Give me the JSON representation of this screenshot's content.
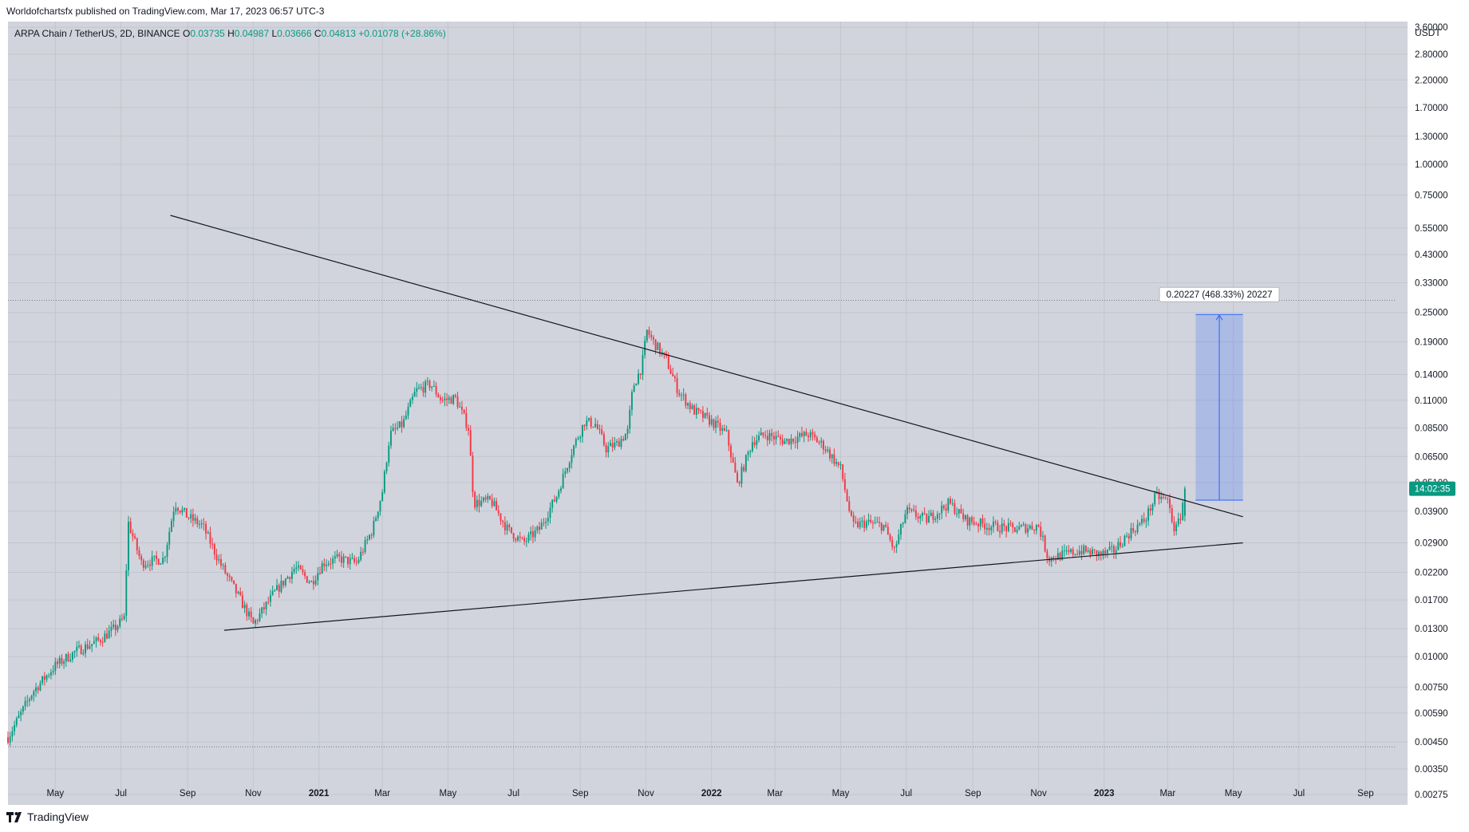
{
  "header": {
    "published": "Worldofchartsfx published on TradingView.com, Mar 17, 2023 06:57 UTC-3"
  },
  "legend": {
    "symbol": "ARPA Chain / TetherUS, 2D, BINANCE",
    "o_key": "O",
    "o_val": "0.03735",
    "h_key": "H",
    "h_val": "0.04987",
    "l_key": "L",
    "l_val": "0.03666",
    "c_key": "C",
    "c_val": "0.04813",
    "change": "+0.01078 (+28.86%)"
  },
  "brand": {
    "label": "TradingView"
  },
  "colors": {
    "up": "#089981",
    "down": "#f23645",
    "background": "#d1d4dc",
    "measure": "#2962ff"
  },
  "chart_data": {
    "type": "candlestick",
    "symbol": "ARPA Chain / TetherUS",
    "interval": "2D",
    "exchange": "BINANCE",
    "y_unit": "USDT",
    "y_scale": "log",
    "ylim": [
      0.0025,
      3.8
    ],
    "x_range": [
      "2020-03-18",
      "2023-10-10"
    ],
    "y_ticks": [
      "3.60000",
      "2.80000",
      "2.20000",
      "1.70000",
      "1.30000",
      "1.00000",
      "0.75000",
      "0.55000",
      "0.43000",
      "0.33000",
      "0.25000",
      "0.19000",
      "0.14000",
      "0.11000",
      "0.08500",
      "0.06500",
      "0.05100",
      "0.03900",
      "0.02900",
      "0.02200",
      "0.01700",
      "0.01300",
      "0.01000",
      "0.00750",
      "0.00590",
      "0.00450",
      "0.00350",
      "0.00275"
    ],
    "x_ticks": [
      {
        "label": "May",
        "date": "2020-05-01",
        "bold": false
      },
      {
        "label": "Jul",
        "date": "2020-07-01",
        "bold": false
      },
      {
        "label": "Sep",
        "date": "2020-09-01",
        "bold": false
      },
      {
        "label": "Nov",
        "date": "2020-11-01",
        "bold": false
      },
      {
        "label": "2021",
        "date": "2021-01-01",
        "bold": true
      },
      {
        "label": "Mar",
        "date": "2021-03-01",
        "bold": false
      },
      {
        "label": "May",
        "date": "2021-05-01",
        "bold": false
      },
      {
        "label": "Jul",
        "date": "2021-07-01",
        "bold": false
      },
      {
        "label": "Sep",
        "date": "2021-09-01",
        "bold": false
      },
      {
        "label": "Nov",
        "date": "2021-11-01",
        "bold": false
      },
      {
        "label": "2022",
        "date": "2022-01-01",
        "bold": true
      },
      {
        "label": "Mar",
        "date": "2022-03-01",
        "bold": false
      },
      {
        "label": "May",
        "date": "2022-05-01",
        "bold": false
      },
      {
        "label": "Jul",
        "date": "2022-07-01",
        "bold": false
      },
      {
        "label": "Sep",
        "date": "2022-09-01",
        "bold": false
      },
      {
        "label": "Nov",
        "date": "2022-11-01",
        "bold": false
      },
      {
        "label": "2023",
        "date": "2023-01-01",
        "bold": true
      },
      {
        "label": "Mar",
        "date": "2023-03-01",
        "bold": false
      },
      {
        "label": "May",
        "date": "2023-05-01",
        "bold": false
      },
      {
        "label": "Jul",
        "date": "2023-07-01",
        "bold": false
      },
      {
        "label": "Sep",
        "date": "2023-09-01",
        "bold": false
      }
    ],
    "price_path": [
      [
        "2020-03-18",
        0.0047
      ],
      [
        "2020-04-10",
        0.0072
      ],
      [
        "2020-05-01",
        0.0092
      ],
      [
        "2020-05-20",
        0.0105
      ],
      [
        "2020-06-10",
        0.0116
      ],
      [
        "2020-06-25",
        0.013
      ],
      [
        "2020-07-05",
        0.0145
      ],
      [
        "2020-07-07",
        0.036
      ],
      [
        "2020-07-20",
        0.024
      ],
      [
        "2020-08-10",
        0.025
      ],
      [
        "2020-08-20",
        0.042
      ],
      [
        "2020-09-01",
        0.037
      ],
      [
        "2020-09-15",
        0.034
      ],
      [
        "2020-10-01",
        0.024
      ],
      [
        "2020-10-20",
        0.017
      ],
      [
        "2020-11-01",
        0.0135
      ],
      [
        "2020-11-20",
        0.018
      ],
      [
        "2020-12-10",
        0.023
      ],
      [
        "2020-12-25",
        0.02
      ],
      [
        "2021-01-05",
        0.024
      ],
      [
        "2021-01-20",
        0.025
      ],
      [
        "2021-02-05",
        0.024
      ],
      [
        "2021-02-20",
        0.033
      ],
      [
        "2021-03-01",
        0.047
      ],
      [
        "2021-03-08",
        0.08
      ],
      [
        "2021-03-20",
        0.088
      ],
      [
        "2021-04-01",
        0.12
      ],
      [
        "2021-04-15",
        0.128
      ],
      [
        "2021-04-25",
        0.11
      ],
      [
        "2021-05-08",
        0.112
      ],
      [
        "2021-05-20",
        0.085
      ],
      [
        "2021-05-25",
        0.042
      ],
      [
        "2021-06-10",
        0.043
      ],
      [
        "2021-06-25",
        0.033
      ],
      [
        "2021-07-10",
        0.029
      ],
      [
        "2021-07-25",
        0.033
      ],
      [
        "2021-08-10",
        0.045
      ],
      [
        "2021-08-25",
        0.07
      ],
      [
        "2021-09-05",
        0.09
      ],
      [
        "2021-09-15",
        0.088
      ],
      [
        "2021-09-25",
        0.07
      ],
      [
        "2021-10-05",
        0.073
      ],
      [
        "2021-10-15",
        0.082
      ],
      [
        "2021-10-20",
        0.125
      ],
      [
        "2021-10-28",
        0.15
      ],
      [
        "2021-11-02",
        0.21
      ],
      [
        "2021-11-08",
        0.19
      ],
      [
        "2021-11-20",
        0.16
      ],
      [
        "2021-12-01",
        0.12
      ],
      [
        "2021-12-15",
        0.1
      ],
      [
        "2022-01-01",
        0.09
      ],
      [
        "2022-01-15",
        0.08
      ],
      [
        "2022-01-25",
        0.05
      ],
      [
        "2022-02-08",
        0.075
      ],
      [
        "2022-02-20",
        0.08
      ],
      [
        "2022-03-10",
        0.075
      ],
      [
        "2022-04-01",
        0.08
      ],
      [
        "2022-04-15",
        0.072
      ],
      [
        "2022-05-01",
        0.058
      ],
      [
        "2022-05-12",
        0.034
      ],
      [
        "2022-05-25",
        0.035
      ],
      [
        "2022-06-10",
        0.034
      ],
      [
        "2022-06-20",
        0.027
      ],
      [
        "2022-07-01",
        0.039
      ],
      [
        "2022-07-20",
        0.036
      ],
      [
        "2022-08-10",
        0.042
      ],
      [
        "2022-08-25",
        0.036
      ],
      [
        "2022-09-15",
        0.034
      ],
      [
        "2022-10-10",
        0.033
      ],
      [
        "2022-11-01",
        0.034
      ],
      [
        "2022-11-10",
        0.025
      ],
      [
        "2022-11-25",
        0.026
      ],
      [
        "2022-12-10",
        0.027
      ],
      [
        "2022-12-30",
        0.026
      ],
      [
        "2023-01-10",
        0.027
      ],
      [
        "2023-01-25",
        0.032
      ],
      [
        "2023-02-08",
        0.036
      ],
      [
        "2023-02-18",
        0.045
      ],
      [
        "2023-03-01",
        0.043
      ],
      [
        "2023-03-08",
        0.032
      ],
      [
        "2023-03-13",
        0.0374
      ],
      [
        "2023-03-17",
        0.0481
      ]
    ],
    "trendlines": [
      {
        "from": [
          "2020-08-16",
          0.62
        ],
        "to": [
          "2023-05-10",
          0.037
        ]
      },
      {
        "from": [
          "2020-10-05",
          0.0128
        ],
        "to": [
          "2023-05-10",
          0.029
        ]
      }
    ],
    "horizontal_lines": [
      0.28,
      0.0043
    ],
    "measure": {
      "from_date": "2023-03-27",
      "to_date": "2023-05-10",
      "low": 0.0432,
      "high": 0.24547,
      "label": "0.20227 (468.33%) 20227"
    },
    "last_price": {
      "value": 0.04813,
      "countdown": "14:02:35"
    },
    "last_close_change": "+28.86%"
  }
}
